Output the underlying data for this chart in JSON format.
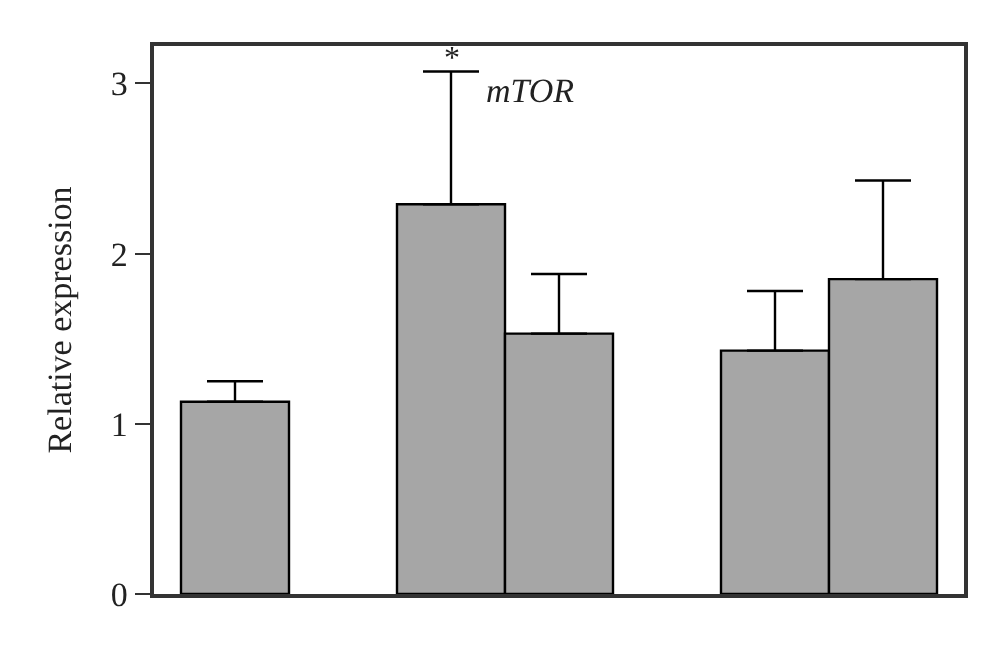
{
  "chart_data": {
    "type": "bar",
    "title": "mTOR",
    "ylabel": "Relative expression",
    "categories": [
      null,
      null,
      null,
      null,
      null,
      null,
      null
    ],
    "values": [
      1.13,
      null,
      2.29,
      1.53,
      null,
      1.43,
      1.85
    ],
    "errors": [
      [
        1.13,
        1.25
      ],
      null,
      [
        2.29,
        3.07
      ],
      [
        1.53,
        1.88
      ],
      null,
      [
        1.43,
        1.78
      ],
      [
        1.85,
        2.43
      ]
    ],
    "color": "#a6a6a6",
    "ylim": [
      0,
      3.22
    ],
    "yticks": [
      0,
      1,
      2,
      3
    ],
    "annotations": [
      {
        "text": "*",
        "y": 3.07
      }
    ]
  }
}
